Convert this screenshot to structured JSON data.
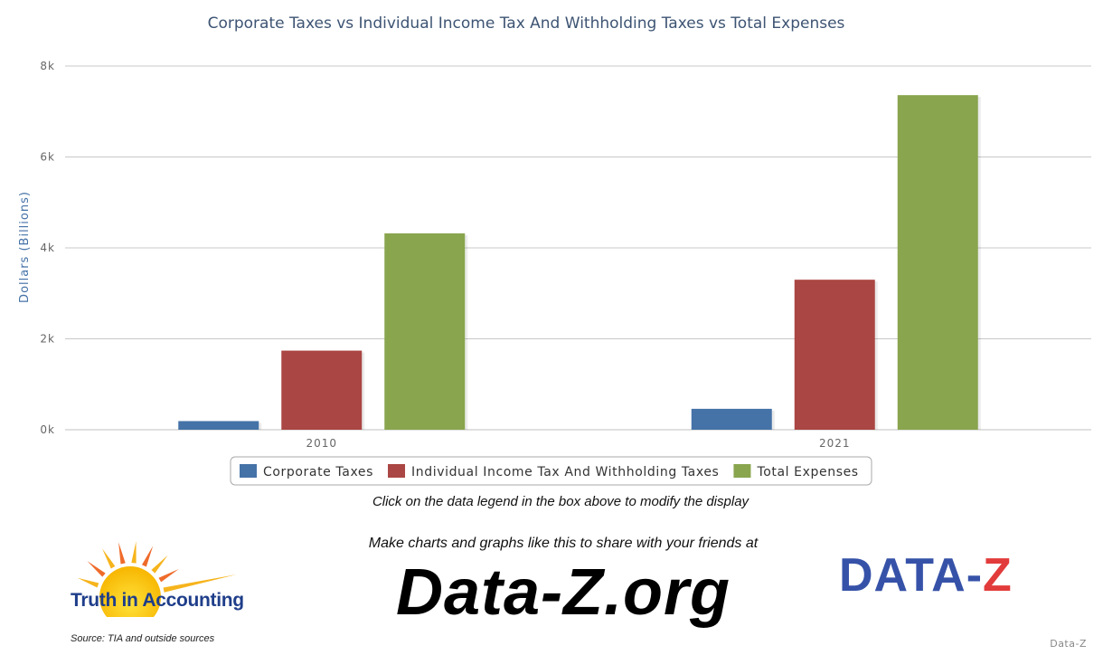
{
  "chart_data": {
    "type": "bar",
    "title": "Corporate Taxes vs Individual Income Tax And Withholding Taxes vs Total Expenses",
    "ylabel": "Dollars (Billions)",
    "xlabel": "",
    "categories": [
      "2010",
      "2021"
    ],
    "ylim": [
      0,
      8000
    ],
    "yticks": [
      0,
      2000,
      4000,
      6000,
      8000
    ],
    "ytick_labels": [
      "0k",
      "2k",
      "4k",
      "6k",
      "8k"
    ],
    "grid": true,
    "legend_position": "bottom-center",
    "series": [
      {
        "name": "Corporate Taxes",
        "values": [
          190,
          460
        ],
        "color": "#4572a7"
      },
      {
        "name": "Individual Income Tax And Withholding Taxes",
        "values": [
          1740,
          3300
        ],
        "color": "#aa4643"
      },
      {
        "name": "Total Expenses",
        "values": [
          4320,
          7360
        ],
        "color": "#89a54e"
      }
    ]
  },
  "hint": "Click on the data legend in the box above to modify the display",
  "promo": "Make charts and graphs like this to share with your friends at",
  "site": "Data-Z.org",
  "tia_logo_text": "Truth in Accounting",
  "dataz_logo": {
    "main": "DATA-",
    "accent": "Z"
  },
  "source": "Source: TIA and outside sources",
  "credit": "Data-Z"
}
